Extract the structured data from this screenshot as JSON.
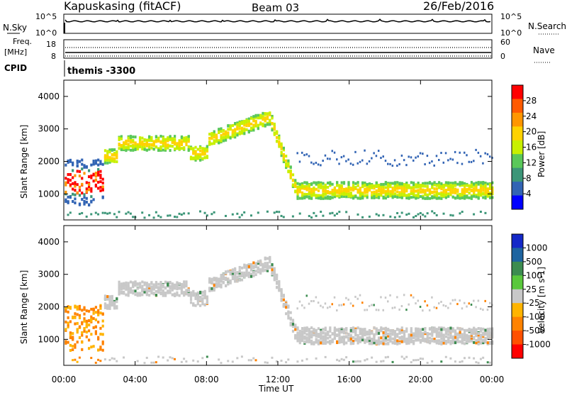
{
  "header": {
    "station": "Kapuskasing (fitACF)",
    "beam": "Beam 03",
    "date": "26/Feb/2016"
  },
  "noise_panel": {
    "left_label": "N.Sky",
    "right_label": "N.Search",
    "left_ticks": [
      "10^5",
      "10^0"
    ],
    "right_ticks": [
      "10^5",
      "10^0"
    ]
  },
  "freq_panel": {
    "left_label_1": "Freq.",
    "left_label_2": "[MHz]",
    "left_ticks": [
      "18",
      "8"
    ],
    "right_label": "Nave",
    "right_ticks": [
      "60",
      "0"
    ]
  },
  "cpid": {
    "label": "CPID",
    "value": "themis -3300"
  },
  "chart_data": [
    {
      "type": "heatmap",
      "name": "power",
      "ylabel": "Slant Range [km]",
      "xlabel": "Time UT",
      "xlim": [
        0,
        24
      ],
      "ylim": [
        200,
        4500
      ],
      "yticks": [
        "1000",
        "2000",
        "3000",
        "4000"
      ],
      "xticks": [
        "00:00",
        "04:00",
        "08:00",
        "12:00",
        "16:00",
        "20:00",
        "00:00"
      ],
      "colorbar": {
        "label": "Power [dB]",
        "ticks": [
          "28",
          "24",
          "20",
          "16",
          "12",
          "8",
          "4"
        ],
        "colors": [
          "#ff0000",
          "#ff5a00",
          "#ff9600",
          "#ffd200",
          "#c8f000",
          "#5ac85a",
          "#3c9678",
          "#3264b4",
          "#0000ff"
        ]
      }
    },
    {
      "type": "heatmap",
      "name": "velocity",
      "ylabel": "Slant Range [km]",
      "xlabel": "Time UT",
      "xlim": [
        0,
        24
      ],
      "ylim": [
        200,
        4500
      ],
      "yticks": [
        "1000",
        "2000",
        "3000",
        "4000"
      ],
      "xticks": [
        "00:00",
        "04:00",
        "08:00",
        "12:00",
        "16:00",
        "20:00",
        "00:00"
      ],
      "colorbar": {
        "label": "Velocity [m s-1]",
        "ticks": [
          "1000",
          "500",
          "100",
          "25",
          "-25",
          "-100",
          "-500",
          "-1000"
        ],
        "colors": [
          "#1428c8",
          "#1e64a0",
          "#3c8c50",
          "#5ac83c",
          "#c8c8c8",
          "#ffb400",
          "#ff8200",
          "#ff5000",
          "#ff0000"
        ]
      }
    }
  ],
  "xaxis_title": "Time UT"
}
